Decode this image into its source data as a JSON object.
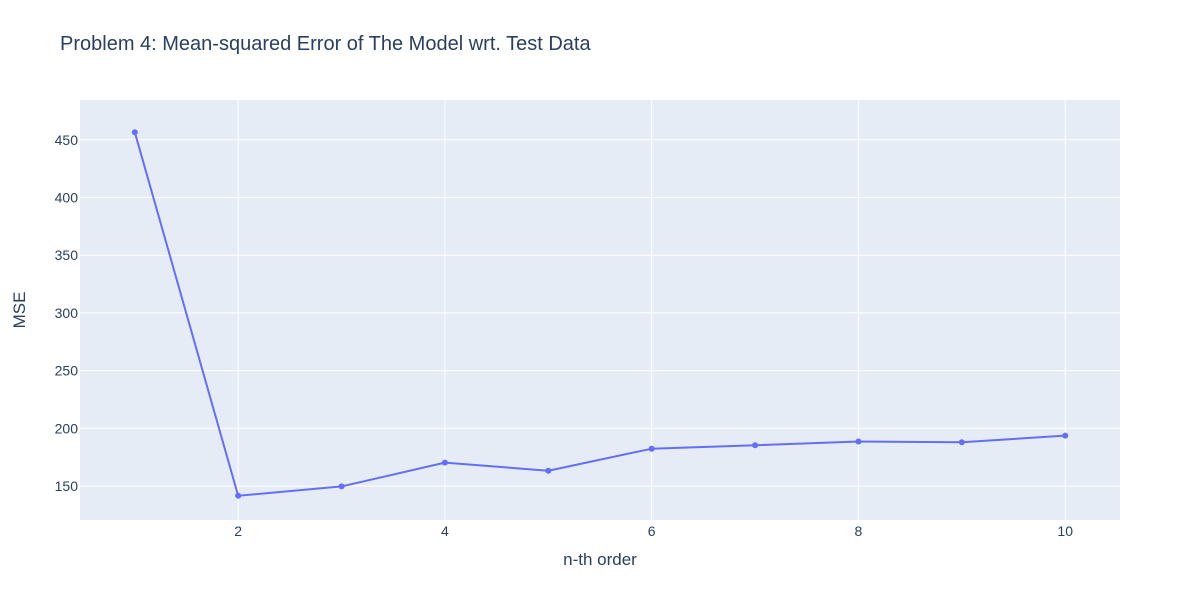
{
  "chart_data": {
    "type": "line",
    "title": "Problem 4: Mean-squared Error of The Model wrt. Test Data",
    "xlabel": "n-th order",
    "ylabel": "MSE",
    "xlim": [
      0.47,
      10.53
    ],
    "ylim": [
      120.5,
      484.5
    ],
    "xticks": [
      2,
      4,
      6,
      8,
      10
    ],
    "yticks": [
      150,
      200,
      250,
      300,
      350,
      400,
      450
    ],
    "grid": true,
    "legend": "none",
    "series": [
      {
        "mode": "lines+markers",
        "x": [
          1,
          2,
          3,
          4,
          5,
          6,
          7,
          8,
          9,
          10
        ],
        "y": [
          456.6,
          141.5,
          149.6,
          170.2,
          163.2,
          182.3,
          185.3,
          188.5,
          187.9,
          193.6
        ]
      }
    ],
    "colors": {
      "plot_bg": "#e5ecf6",
      "grid": "#ffffff",
      "series": "#636efa",
      "text": "#2a3f5f"
    }
  }
}
